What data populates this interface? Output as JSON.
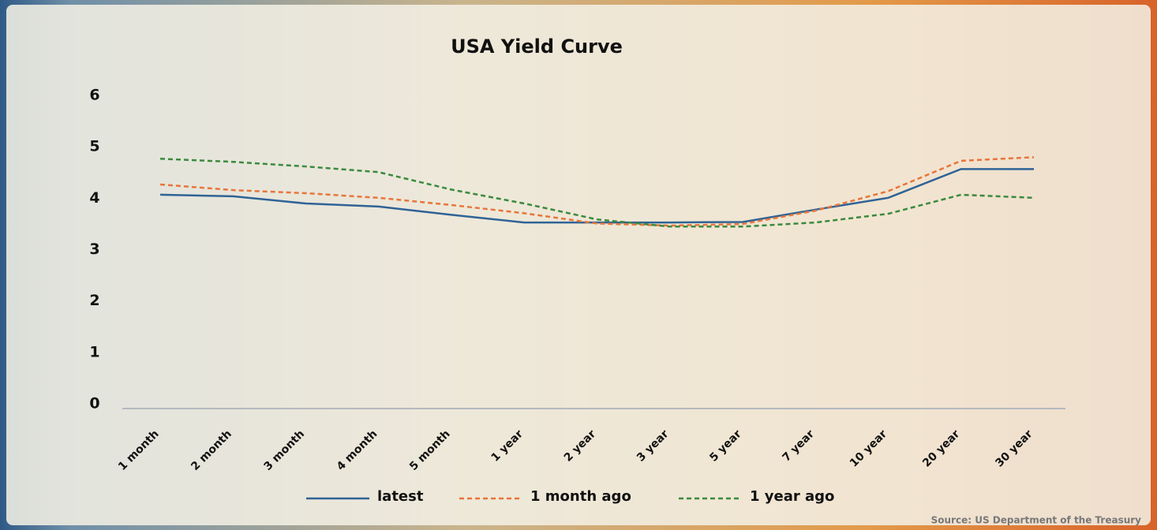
{
  "chart_data": {
    "type": "line",
    "title": "USA Yield Curve",
    "categories": [
      "1 month",
      "2 month",
      "3 month",
      "4 month",
      "5 month",
      "1 year",
      "2 year",
      "3 year",
      "5 year",
      "7 year",
      "10 year",
      "20 year",
      "30 year"
    ],
    "series": [
      {
        "name": "latest",
        "color": "#2f6396",
        "style": "solid",
        "values": [
          4.16,
          4.13,
          3.99,
          3.93,
          3.77,
          3.62,
          3.62,
          3.62,
          3.63,
          3.87,
          4.1,
          4.66,
          4.66
        ]
      },
      {
        "name": "1 month ago",
        "color": "#e8753a",
        "style": "dashed",
        "values": [
          4.36,
          4.25,
          4.19,
          4.1,
          3.96,
          3.8,
          3.6,
          3.56,
          3.59,
          3.85,
          4.23,
          4.82,
          4.89
        ]
      },
      {
        "name": "1 year ago",
        "color": "#3a8a3e",
        "style": "dashed",
        "values": [
          4.86,
          4.8,
          4.71,
          4.6,
          4.26,
          3.99,
          3.68,
          3.54,
          3.54,
          3.62,
          3.79,
          4.16,
          4.1
        ]
      }
    ],
    "ylim": [
      0,
      6
    ],
    "yticks": [
      0,
      1,
      2,
      3,
      4,
      5,
      6
    ],
    "source": "Source: US Department of the Treasury"
  }
}
